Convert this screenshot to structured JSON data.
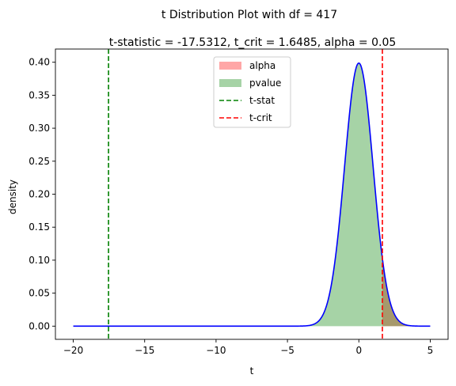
{
  "chart_data": {
    "type": "line",
    "suptitle": "t Distribution Plot with df = 417",
    "title": "t-statistic = -17.5312, t_crit = 1.6485, alpha = 0.05",
    "xlabel": "t",
    "ylabel": "density",
    "xlim": [
      -21.25,
      6.25
    ],
    "ylim": [
      -0.02,
      0.42
    ],
    "xticks": [
      -20,
      -15,
      -10,
      -5,
      0,
      5
    ],
    "xtick_labels": [
      "−20",
      "−15",
      "−10",
      "−5",
      "0",
      "5"
    ],
    "yticks": [
      0.0,
      0.05,
      0.1,
      0.15,
      0.2,
      0.25,
      0.3,
      0.35,
      0.4
    ],
    "ytick_labels": [
      "0.00",
      "0.05",
      "0.10",
      "0.15",
      "0.20",
      "0.25",
      "0.30",
      "0.35",
      "0.40"
    ],
    "grid": false,
    "legend_position": "top-center",
    "df": 417,
    "curve": {
      "x_range": [
        -20,
        5
      ],
      "color": "#0000ff"
    },
    "series": [
      {
        "name": "alpha",
        "kind": "fill",
        "x_range": [
          1.6485,
          5
        ],
        "color": "#ff0000",
        "alpha": 0.35
      },
      {
        "name": "pvalue",
        "kind": "fill",
        "x_range": [
          -17.5312,
          5
        ],
        "color": "#008000",
        "alpha": 0.35
      },
      {
        "name": "t-stat",
        "kind": "vline",
        "x": -17.5312,
        "color": "#008000",
        "dash": "dashed"
      },
      {
        "name": "t-crit",
        "kind": "vline",
        "x": 1.6485,
        "color": "#ff0000",
        "dash": "dashed"
      }
    ]
  }
}
